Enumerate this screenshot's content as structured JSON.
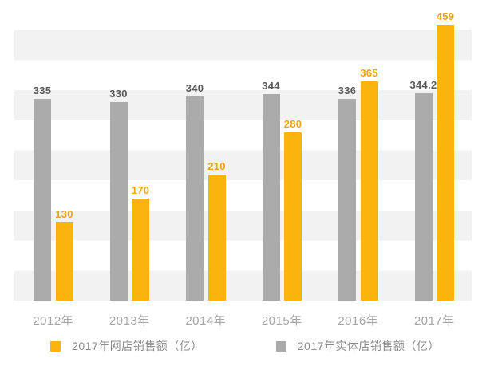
{
  "chart_data": {
    "type": "bar",
    "title": "",
    "xlabel": "",
    "ylabel": "",
    "categories": [
      "2012年",
      "2013年",
      "2014年",
      "2015年",
      "2016年",
      "2017年"
    ],
    "series": [
      {
        "name": "2017年网店销售额（亿）",
        "color": "#FBB40E",
        "label_color": "#F0A40C",
        "group_slot": 1,
        "values": [
          130,
          170,
          210,
          280,
          365,
          459
        ],
        "labels": [
          "130",
          "170",
          "210",
          "280",
          "365",
          "459"
        ]
      },
      {
        "name": "2017年实体店销售额（亿）",
        "color": "#ABABAB",
        "label_color": "#595959",
        "group_slot": 0,
        "values": [
          335,
          330,
          340,
          344,
          336,
          344.2
        ],
        "labels": [
          "335",
          "330",
          "340",
          "344",
          "336",
          "344.2"
        ]
      }
    ],
    "ylim": [
      0,
      500
    ],
    "grid": "alternating-horizontal-bands",
    "band_interval": 50,
    "band_color": "#F2F2F2",
    "axis_label_color": "#A6A6A6",
    "legend_text_color": "#8A8A8A",
    "legend_position": "bottom",
    "data_labels_visible": true,
    "y_axis_ticks_visible": false
  }
}
